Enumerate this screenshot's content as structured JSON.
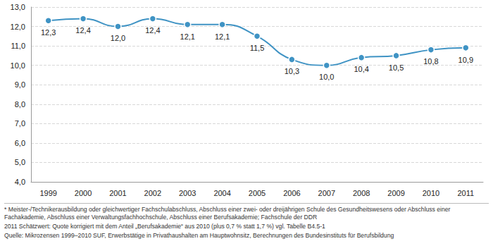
{
  "chart_data": {
    "type": "line",
    "categories": [
      "1999",
      "2000",
      "2001",
      "2002",
      "2003",
      "2004",
      "2005",
      "2006",
      "2007",
      "2008",
      "2009",
      "2010",
      "2011"
    ],
    "values": [
      12.3,
      12.4,
      12.0,
      12.4,
      12.1,
      12.1,
      11.5,
      10.3,
      10.0,
      10.4,
      10.5,
      10.8,
      10.9
    ],
    "value_labels": [
      "12,3",
      "12,4",
      "12,0",
      "12,4",
      "12,1",
      "12,1",
      "11,5",
      "10,3",
      "10,0",
      "10,4",
      "10,5",
      "10,8",
      "10,9"
    ],
    "color": "#3f93c4",
    "marker": "circle",
    "data_labels": true,
    "grid": true,
    "ylim": [
      4,
      13
    ],
    "yticks": [
      {
        "value": 4,
        "label": "4,0"
      },
      {
        "value": 5,
        "label": "5,0"
      },
      {
        "value": 6,
        "label": "6,0"
      },
      {
        "value": 7,
        "label": "7,0"
      },
      {
        "value": 8,
        "label": "8,0"
      },
      {
        "value": 9,
        "label": "9,0"
      },
      {
        "value": 10,
        "label": "10,0"
      },
      {
        "value": 11,
        "label": "11,0"
      },
      {
        "value": 12,
        "label": "12,0"
      },
      {
        "value": 13,
        "label": "13,0"
      }
    ],
    "annotations": [
      "* Meister-/Technikerausbildung oder gleichwertiger Fachschulabschluss, Abschluss einer zwei- oder dreijährigen Schule des Gesundheitswesens oder Abschluss einer Fachakademie, Abschluss einer Verwaltungsfachhochschule, Abschluss einer Berufsakademie; Fachschule der DDR",
      "2011 Schätzwert: Quote korrigiert mit dem Anteil „Berufsakademie“ aus 2010 (plus 0,7 % statt 1,7 %) vgl. Tabelle B4.5-1",
      "Quelle: Mikrozensen 1999–2010 SUF, Erwerbstätige in Privathaushalten am Hauptwohnsitz, Berechnungen des Bundesinstituts für Berufsbildung"
    ]
  }
}
